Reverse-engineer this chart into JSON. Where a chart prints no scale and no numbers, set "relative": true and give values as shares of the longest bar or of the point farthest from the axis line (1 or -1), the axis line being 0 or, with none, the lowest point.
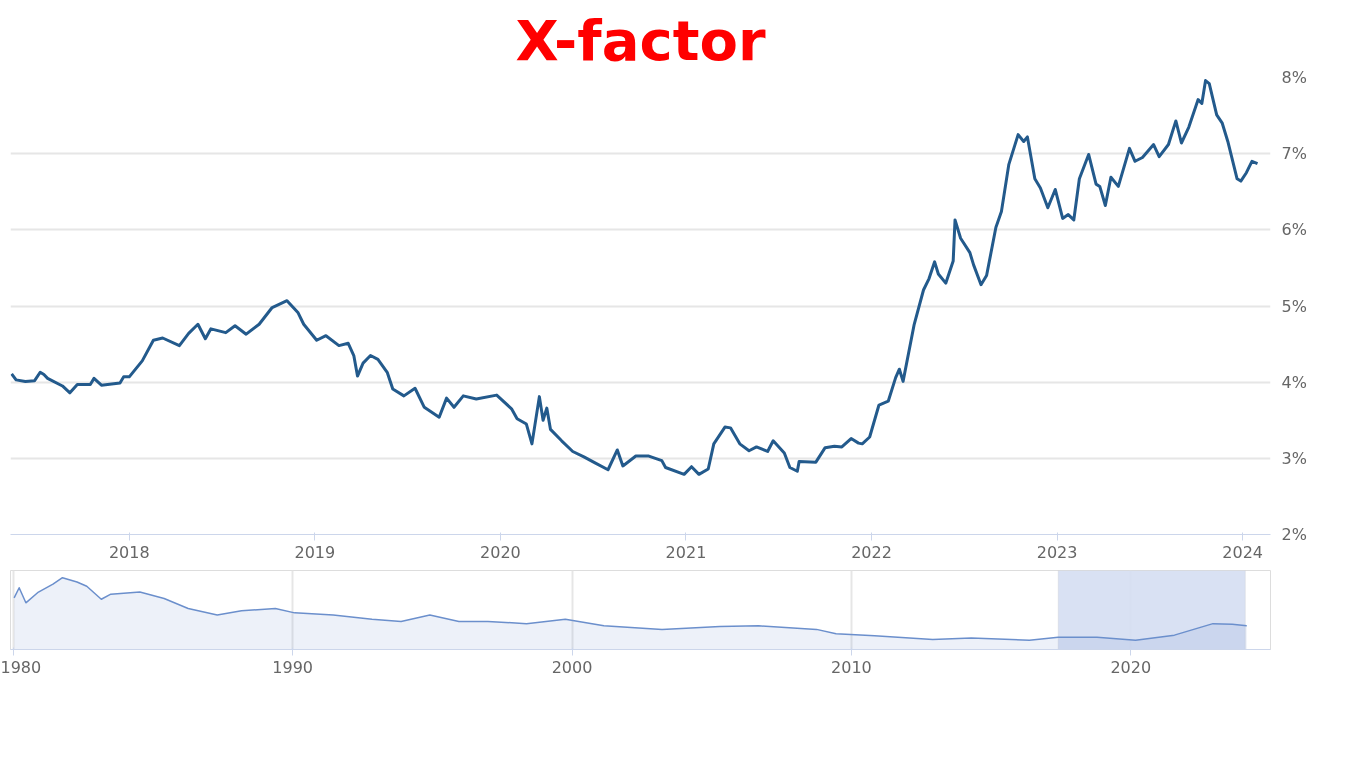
{
  "chart_data": [
    {
      "type": "line",
      "title": "X-factor",
      "xlim": [
        2017.36,
        2024.15
      ],
      "xticks": [
        2018,
        2019,
        2020,
        2021,
        2022,
        2023,
        2024
      ],
      "ylim": [
        2,
        8
      ],
      "yticks": [
        {
          "value": 2,
          "label": "2%"
        },
        {
          "value": 3,
          "label": "3%"
        },
        {
          "value": 4,
          "label": "4%"
        },
        {
          "value": 5,
          "label": "5%"
        },
        {
          "value": 6,
          "label": "6%"
        },
        {
          "value": 7,
          "label": "7%"
        },
        {
          "value": 8,
          "label": "8%"
        }
      ],
      "grid": "y",
      "line_style": "solid",
      "series": [
        {
          "color": "#235a8c",
          "x": [
            2017.366,
            2017.39,
            2017.44,
            2017.49,
            2017.52,
            2017.54,
            2017.56,
            2017.64,
            2017.68,
            2017.72,
            2017.79,
            2017.81,
            2017.85,
            2017.95,
            2017.97,
            2018.0,
            2018.07,
            2018.13,
            2018.18,
            2018.27,
            2018.32,
            2018.37,
            2018.41,
            2018.44,
            2018.52,
            2018.57,
            2018.63,
            2018.7,
            2018.77,
            2018.85,
            2018.91,
            2018.94,
            2019.01,
            2019.06,
            2019.13,
            2019.18,
            2019.21,
            2019.23,
            2019.26,
            2019.3,
            2019.34,
            2019.39,
            2019.42,
            2019.48,
            2019.54,
            2019.59,
            2019.67,
            2019.71,
            2019.75,
            2019.8,
            2019.87,
            2019.98,
            2020.06,
            2020.09,
            2020.14,
            2020.17,
            2020.21,
            2020.23,
            2020.25,
            2020.27,
            2020.33,
            2020.39,
            2020.45,
            2020.51,
            2020.58,
            2020.63,
            2020.66,
            2020.73,
            2020.8,
            2020.87,
            2020.89,
            2020.99,
            2021.03,
            2021.07,
            2021.12,
            2021.15,
            2021.21,
            2021.24,
            2021.29,
            2021.34,
            2021.38,
            2021.44,
            2021.47,
            2021.53,
            2021.56,
            2021.6,
            2021.61,
            2021.7,
            2021.75,
            2021.8,
            2021.84,
            2021.89,
            2021.93,
            2021.95,
            2021.99,
            2022.04,
            2022.09,
            2022.13,
            2022.15,
            2022.17,
            2022.23,
            2022.28,
            2022.31,
            2022.34,
            2022.36,
            2022.4,
            2022.44,
            2022.45,
            2022.48,
            2022.53,
            2022.55,
            2022.59,
            2022.62,
            2022.67,
            2022.7,
            2022.74,
            2022.79,
            2022.82,
            2022.84,
            2022.88,
            2022.91,
            2022.95,
            2022.99,
            2023.03,
            2023.06,
            2023.09,
            2023.12,
            2023.17,
            2023.21,
            2023.23,
            2023.26,
            2023.29,
            2023.33,
            2023.39,
            2023.42,
            2023.46,
            2023.52,
            2023.55,
            2023.6,
            2023.64,
            2023.67,
            2023.71,
            2023.76,
            2023.78,
            2023.8,
            2023.82,
            2023.86,
            2023.89,
            2023.92,
            2023.97,
            2023.99,
            2024.02,
            2024.05,
            2024.08
          ],
          "values": [
            4.11,
            4.03,
            4.01,
            4.02,
            4.13,
            4.1,
            4.05,
            3.95,
            3.86,
            3.97,
            3.97,
            4.05,
            3.96,
            3.99,
            4.07,
            4.07,
            4.28,
            4.55,
            4.58,
            4.48,
            4.64,
            4.76,
            4.57,
            4.7,
            4.65,
            4.74,
            4.63,
            4.76,
            4.98,
            5.07,
            4.91,
            4.76,
            4.55,
            4.61,
            4.48,
            4.51,
            4.35,
            4.08,
            4.25,
            4.35,
            4.3,
            4.13,
            3.91,
            3.82,
            3.92,
            3.67,
            3.54,
            3.79,
            3.67,
            3.82,
            3.78,
            3.83,
            3.65,
            3.52,
            3.45,
            3.19,
            3.81,
            3.5,
            3.66,
            3.38,
            3.23,
            3.09,
            3.02,
            2.94,
            2.85,
            3.11,
            2.9,
            3.03,
            3.03,
            2.97,
            2.88,
            2.79,
            2.89,
            2.79,
            2.86,
            3.19,
            3.41,
            3.4,
            3.19,
            3.1,
            3.15,
            3.09,
            3.23,
            3.07,
            2.88,
            2.83,
            2.96,
            2.95,
            3.14,
            3.16,
            3.15,
            3.26,
            3.2,
            3.19,
            3.28,
            3.7,
            3.75,
            4.06,
            4.17,
            4.01,
            4.76,
            5.21,
            5.36,
            5.58,
            5.42,
            5.3,
            5.59,
            6.13,
            5.89,
            5.7,
            5.54,
            5.28,
            5.4,
            6.03,
            6.24,
            6.86,
            7.25,
            7.16,
            7.22,
            6.67,
            6.55,
            6.29,
            6.53,
            6.15,
            6.2,
            6.13,
            6.67,
            6.99,
            6.6,
            6.57,
            6.32,
            6.69,
            6.57,
            7.07,
            6.9,
            6.95,
            7.12,
            6.96,
            7.12,
            7.43,
            7.14,
            7.35,
            7.71,
            7.66,
            7.96,
            7.92,
            7.51,
            7.4,
            7.16,
            6.67,
            6.64,
            6.75,
            6.9,
            6.87
          ]
        }
      ]
    },
    {
      "type": "area",
      "relative": true,
      "xlim": [
        1979.9,
        2025.0
      ],
      "xticks": [
        1980,
        1990,
        2000,
        2010,
        2020
      ],
      "grid": "x",
      "bands": [
        {
          "axis": "x",
          "from": 2017.4,
          "to": 2024.1,
          "color": "#d5def2"
        }
      ],
      "series": [
        {
          "color": "#6b8fcc",
          "x": [
            1980.03,
            1980.21,
            1980.45,
            1980.9,
            1981.42,
            1981.76,
            1982.28,
            1982.63,
            1983.15,
            1983.49,
            1984.53,
            1985.4,
            1986.26,
            1987.3,
            1988.17,
            1989.38,
            1990.07,
            1991.45,
            1992.84,
            1993.88,
            1994.91,
            1995.95,
            1996.99,
            1998.37,
            1999.76,
            2001.14,
            2003.22,
            2005.29,
            2006.68,
            2008.75,
            2009.45,
            2010.83,
            2012.91,
            2014.29,
            2016.37,
            2017.4,
            2018.79,
            2020.17,
            2021.56,
            2022.94,
            2023.63,
            2024.15
          ],
          "values": [
            0.72,
            0.86,
            0.65,
            0.8,
            0.91,
            1.0,
            0.94,
            0.88,
            0.7,
            0.77,
            0.8,
            0.71,
            0.57,
            0.48,
            0.54,
            0.57,
            0.51,
            0.48,
            0.42,
            0.39,
            0.48,
            0.39,
            0.39,
            0.36,
            0.42,
            0.33,
            0.28,
            0.32,
            0.33,
            0.28,
            0.22,
            0.19,
            0.14,
            0.16,
            0.13,
            0.17,
            0.17,
            0.13,
            0.2,
            0.36,
            0.35,
            0.33
          ]
        }
      ]
    }
  ]
}
